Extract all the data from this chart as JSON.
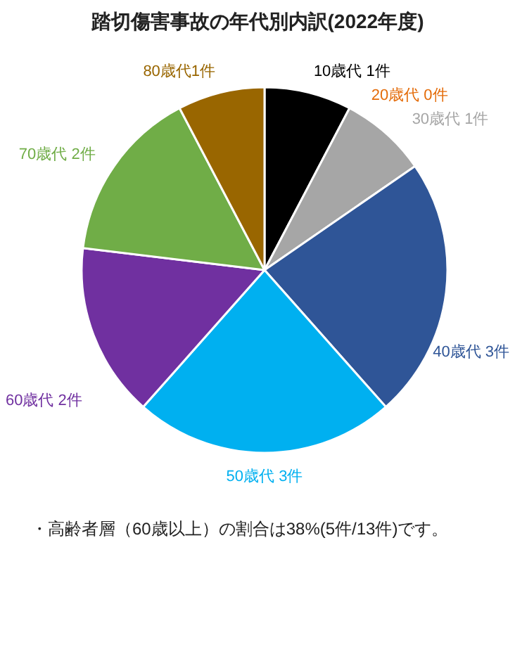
{
  "chart_data": {
    "type": "pie",
    "title": "踏切傷害事故の年代別内訳(2022年度)",
    "categories": [
      "10歳代 1件",
      "20歳代 0件",
      "30歳代 1件",
      "40歳代 3件",
      "50歳代 3件",
      "60歳代 2件",
      "70歳代 2件",
      "80歳代1件"
    ],
    "values": [
      1,
      0,
      1,
      3,
      3,
      2,
      2,
      1
    ],
    "colors": [
      "#000000",
      "#e46c0a",
      "#a6a6a6",
      "#2f5597",
      "#00b0f0",
      "#7030a0",
      "#70ad47",
      "#996600"
    ],
    "annotations": [
      "・高齢者層（60歳以上）の割合は38%(5件/13件)です。"
    ]
  }
}
